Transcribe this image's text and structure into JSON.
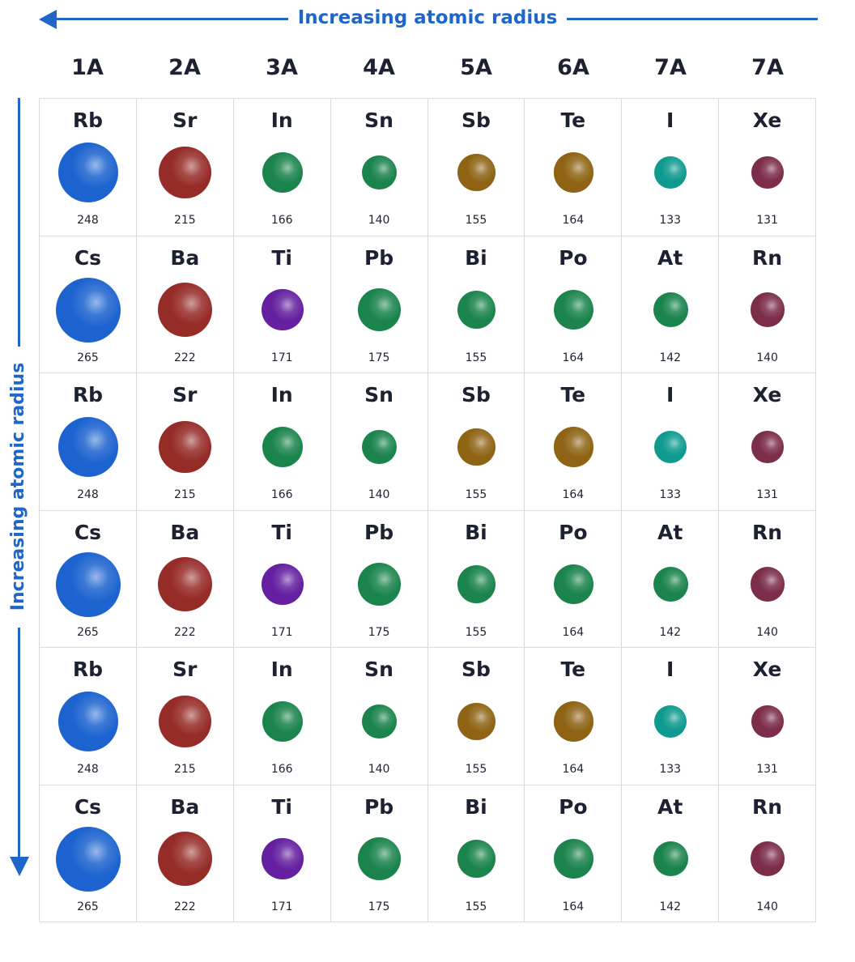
{
  "horizontal_label": "Increasing atomic radius",
  "vertical_label": "Increasing atomic radius",
  "groups": [
    "1A",
    "2A",
    "3A",
    "4A",
    "5A",
    "6A",
    "7A",
    "7A"
  ],
  "colors": {
    "arrow": "#1f66c9",
    "blue": "#1c63cf",
    "red": "#962c28",
    "green": "#1b844d",
    "gold": "#8e6414",
    "teal": "#0f9a8f",
    "maroon": "#7c2d4a",
    "purple": "#6420a0"
  },
  "rows": [
    [
      {
        "symbol": "Rb",
        "radius": 248,
        "color": "blue"
      },
      {
        "symbol": "Sr",
        "radius": 215,
        "color": "red"
      },
      {
        "symbol": "In",
        "radius": 166,
        "color": "green"
      },
      {
        "symbol": "Sn",
        "radius": 140,
        "color": "green"
      },
      {
        "symbol": "Sb",
        "radius": 155,
        "color": "gold"
      },
      {
        "symbol": "Te",
        "radius": 164,
        "color": "gold"
      },
      {
        "symbol": "I",
        "radius": 133,
        "color": "teal"
      },
      {
        "symbol": "Xe",
        "radius": 131,
        "color": "maroon"
      }
    ],
    [
      {
        "symbol": "Cs",
        "radius": 265,
        "color": "blue"
      },
      {
        "symbol": "Ba",
        "radius": 222,
        "color": "red"
      },
      {
        "symbol": "Ti",
        "radius": 171,
        "color": "purple"
      },
      {
        "symbol": "Pb",
        "radius": 175,
        "color": "green"
      },
      {
        "symbol": "Bi",
        "radius": 155,
        "color": "green"
      },
      {
        "symbol": "Po",
        "radius": 164,
        "color": "green"
      },
      {
        "symbol": "At",
        "radius": 142,
        "color": "green"
      },
      {
        "symbol": "Rn",
        "radius": 140,
        "color": "maroon"
      }
    ],
    [
      {
        "symbol": "Rb",
        "radius": 248,
        "color": "blue"
      },
      {
        "symbol": "Sr",
        "radius": 215,
        "color": "red"
      },
      {
        "symbol": "In",
        "radius": 166,
        "color": "green"
      },
      {
        "symbol": "Sn",
        "radius": 140,
        "color": "green"
      },
      {
        "symbol": "Sb",
        "radius": 155,
        "color": "gold"
      },
      {
        "symbol": "Te",
        "radius": 164,
        "color": "gold"
      },
      {
        "symbol": "I",
        "radius": 133,
        "color": "teal"
      },
      {
        "symbol": "Xe",
        "radius": 131,
        "color": "maroon"
      }
    ],
    [
      {
        "symbol": "Cs",
        "radius": 265,
        "color": "blue"
      },
      {
        "symbol": "Ba",
        "radius": 222,
        "color": "red"
      },
      {
        "symbol": "Ti",
        "radius": 171,
        "color": "purple"
      },
      {
        "symbol": "Pb",
        "radius": 175,
        "color": "green"
      },
      {
        "symbol": "Bi",
        "radius": 155,
        "color": "green"
      },
      {
        "symbol": "Po",
        "radius": 164,
        "color": "green"
      },
      {
        "symbol": "At",
        "radius": 142,
        "color": "green"
      },
      {
        "symbol": "Rn",
        "radius": 140,
        "color": "maroon"
      }
    ],
    [
      {
        "symbol": "Rb",
        "radius": 248,
        "color": "blue"
      },
      {
        "symbol": "Sr",
        "radius": 215,
        "color": "red"
      },
      {
        "symbol": "In",
        "radius": 166,
        "color": "green"
      },
      {
        "symbol": "Sn",
        "radius": 140,
        "color": "green"
      },
      {
        "symbol": "Sb",
        "radius": 155,
        "color": "gold"
      },
      {
        "symbol": "Te",
        "radius": 164,
        "color": "gold"
      },
      {
        "symbol": "I",
        "radius": 133,
        "color": "teal"
      },
      {
        "symbol": "Xe",
        "radius": 131,
        "color": "maroon"
      }
    ],
    [
      {
        "symbol": "Cs",
        "radius": 265,
        "color": "blue"
      },
      {
        "symbol": "Ba",
        "radius": 222,
        "color": "red"
      },
      {
        "symbol": "Ti",
        "radius": 171,
        "color": "purple"
      },
      {
        "symbol": "Pb",
        "radius": 175,
        "color": "green"
      },
      {
        "symbol": "Bi",
        "radius": 155,
        "color": "green"
      },
      {
        "symbol": "Po",
        "radius": 164,
        "color": "green"
      },
      {
        "symbol": "At",
        "radius": 142,
        "color": "green"
      },
      {
        "symbol": "Rn",
        "radius": 140,
        "color": "maroon"
      }
    ]
  ]
}
